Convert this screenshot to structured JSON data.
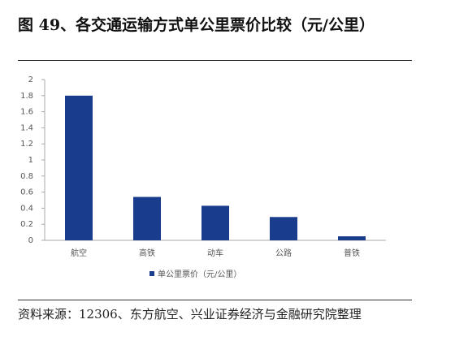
{
  "chart_data": {
    "type": "bar",
    "title": "图 49、各交通运输方式单公里票价比较（元/公里）",
    "categories": [
      "航空",
      "高铁",
      "动车",
      "公路",
      "普铁"
    ],
    "series": [
      {
        "name": "单公里票价（元/公里）",
        "color": "#1a3c8c",
        "values": [
          1.8,
          0.54,
          0.43,
          0.29,
          0.05
        ]
      }
    ],
    "ylim": [
      0,
      2
    ],
    "yticks": [
      0,
      0.2,
      0.4,
      0.6,
      0.8,
      1,
      1.2,
      1.4,
      1.6,
      1.8,
      2
    ],
    "grid": false,
    "legend": "bottom",
    "source": "资料来源：12306、东方航空、兴业证券经济与金融研究院整理"
  }
}
